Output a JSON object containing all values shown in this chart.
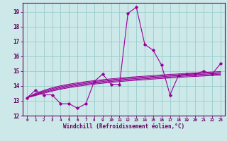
{
  "xlabel": "Windchill (Refroidissement éolien,°C)",
  "background_color": "#cce8e8",
  "grid_color": "#99cccc",
  "line_color": "#990099",
  "xlim": [
    -0.5,
    23.5
  ],
  "ylim": [
    12,
    19.6
  ],
  "yticks": [
    12,
    13,
    14,
    15,
    16,
    17,
    18,
    19
  ],
  "xticks": [
    0,
    1,
    2,
    3,
    4,
    5,
    6,
    7,
    8,
    9,
    10,
    11,
    12,
    13,
    14,
    15,
    16,
    17,
    18,
    19,
    20,
    21,
    22,
    23
  ],
  "hours": [
    0,
    1,
    2,
    3,
    4,
    5,
    6,
    7,
    8,
    9,
    10,
    11,
    12,
    13,
    14,
    15,
    16,
    17,
    18,
    19,
    20,
    21,
    22,
    23
  ],
  "windchill": [
    13.2,
    13.7,
    13.4,
    13.4,
    12.8,
    12.8,
    12.5,
    12.8,
    14.3,
    14.8,
    14.1,
    14.1,
    18.9,
    19.3,
    16.8,
    16.4,
    15.4,
    13.4,
    14.7,
    14.8,
    14.8,
    15.0,
    14.8,
    15.5
  ],
  "temp_lines": [
    [
      13.2,
      13.35,
      13.5,
      13.65,
      13.78,
      13.88,
      13.97,
      14.05,
      14.12,
      14.18,
      14.24,
      14.29,
      14.34,
      14.38,
      14.42,
      14.46,
      14.5,
      14.54,
      14.57,
      14.61,
      14.64,
      14.67,
      14.7,
      14.73
    ],
    [
      13.2,
      13.38,
      13.55,
      13.7,
      13.83,
      13.94,
      14.03,
      14.11,
      14.18,
      14.24,
      14.3,
      14.35,
      14.4,
      14.44,
      14.48,
      14.52,
      14.56,
      14.6,
      14.63,
      14.67,
      14.7,
      14.73,
      14.76,
      14.79
    ],
    [
      13.2,
      13.42,
      13.6,
      13.76,
      13.89,
      14.0,
      14.09,
      14.17,
      14.24,
      14.3,
      14.36,
      14.41,
      14.46,
      14.5,
      14.54,
      14.58,
      14.62,
      14.66,
      14.69,
      14.73,
      14.76,
      14.79,
      14.82,
      14.85
    ],
    [
      13.2,
      13.46,
      13.65,
      13.82,
      13.95,
      14.06,
      14.15,
      14.23,
      14.3,
      14.36,
      14.42,
      14.47,
      14.52,
      14.56,
      14.6,
      14.64,
      14.68,
      14.72,
      14.75,
      14.79,
      14.82,
      14.85,
      14.88,
      14.91
    ],
    [
      13.2,
      13.5,
      13.7,
      13.88,
      14.01,
      14.12,
      14.21,
      14.29,
      14.36,
      14.42,
      14.48,
      14.53,
      14.58,
      14.62,
      14.66,
      14.7,
      14.74,
      14.78,
      14.81,
      14.85,
      14.88,
      14.91,
      14.94,
      14.97
    ]
  ]
}
